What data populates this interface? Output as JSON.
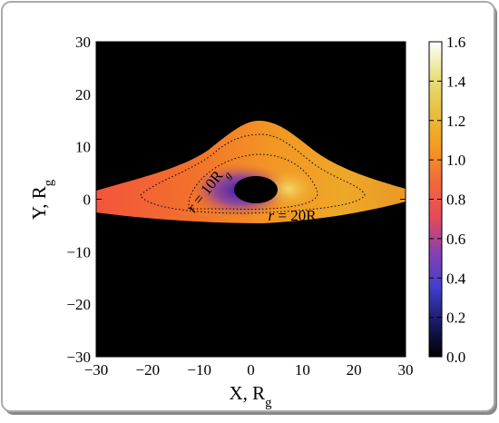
{
  "chart_data": {
    "type": "heatmap",
    "xlabel": [
      "X, R",
      "g"
    ],
    "ylabel": [
      "Y, R",
      "g"
    ],
    "xlim": [
      -30,
      30
    ],
    "ylim": [
      -30,
      30
    ],
    "xticks": [
      {
        "value": -30,
        "label": "−30"
      },
      {
        "value": -20,
        "label": "−20"
      },
      {
        "value": -10,
        "label": "−10"
      },
      0,
      10,
      20,
      30
    ],
    "yticks": [
      {
        "value": -30,
        "label": "−30"
      },
      {
        "value": -20,
        "label": "−20"
      },
      {
        "value": -10,
        "label": "−10"
      },
      0,
      10,
      20,
      30
    ],
    "annotations": [
      [
        "r",
        " = 10R",
        "g"
      ],
      [
        "r",
        " = 20R",
        "g"
      ]
    ],
    "colorbar": {
      "lim": [
        0,
        1.6
      ],
      "ticks": [
        {
          "value": 0,
          "label": "0.0"
        },
        0.2,
        0.4,
        0.6,
        0.8,
        {
          "value": 1,
          "label": "1.0"
        },
        1.2,
        1.4,
        1.6
      ],
      "colormap": [
        "#000000",
        "#1a1a66",
        "#4040cc",
        "#8a40b0",
        "#e64a5a",
        "#f06a3a",
        "#f59a20",
        "#e6c040",
        "#e8e080",
        "#ffffff"
      ]
    },
    "background": "#000000"
  }
}
